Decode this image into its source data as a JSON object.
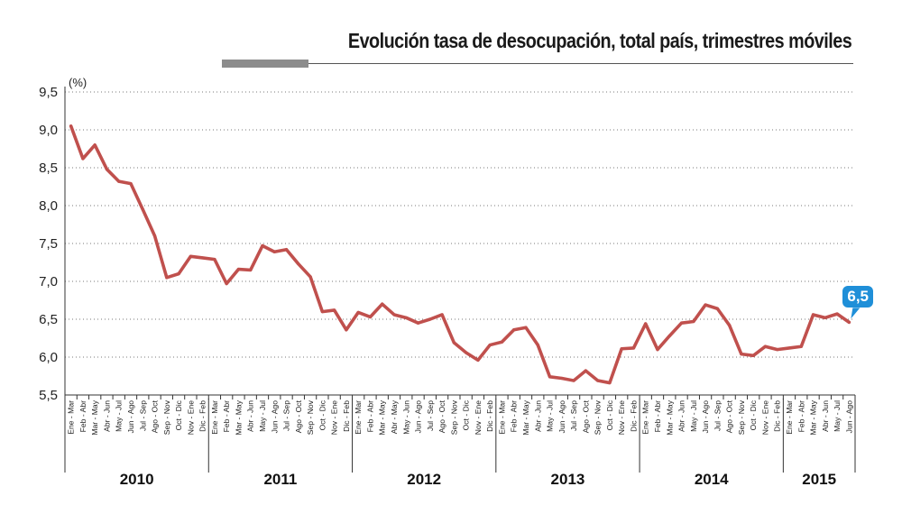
{
  "chart_data": {
    "type": "line",
    "title": "Evolución tasa de desocupación, total país, trimestres móviles",
    "ylabel": "(%)",
    "ylim": [
      5.5,
      9.5
    ],
    "yticks": [
      "5,5",
      "6,0",
      "6,5",
      "7,0",
      "7,5",
      "8,0",
      "8,5",
      "9,0",
      "9,5"
    ],
    "grid": true,
    "line_color": "#c0504d",
    "highlight_color": "#1f8fd8",
    "last_value_label": "6,5",
    "categories": [
      "Ene - Mar",
      "Feb - Abr",
      "Mar - May",
      "Abr - Jun",
      "May - Jul",
      "Jun - Ago",
      "Jul - Sep",
      "Ago - Oct",
      "Sep - Nov",
      "Oct - Dic",
      "Nov - Ene",
      "Dic - Feb",
      "Ene - Mar",
      "Feb - Abr",
      "Mar - May",
      "Abr - Jun",
      "May - Jul",
      "Jun - Ago",
      "Jul - Sep",
      "Ago - Oct",
      "Sep - Nov",
      "Oct - Dic",
      "Nov - Ene",
      "Dic - Feb",
      "Ene - Mar",
      "Feb - Abr",
      "Mar - May",
      "Abr - May",
      "May - Jun",
      "Jun - Ago",
      "Jul - Sep",
      "Ago - Oct",
      "Sep - Nov",
      "Oct - Dic",
      "Nov - Ene",
      "Dic - Feb",
      "Ene - Mar",
      "Feb - Abr",
      "Mar - May",
      "Abr - Jun",
      "May - Jul",
      "Jun - Ago",
      "Jul - Sep",
      "Ago - Oct",
      "Sep - Nov",
      "Oct - Dic",
      "Nov - Ene",
      "Dic - Feb",
      "Ene - Mar",
      "Feb - Abr",
      "Mar - May",
      "Abr - Jun",
      "May - Jul",
      "Jun - Ago",
      "Jul - Sep",
      "Ago - Oct",
      "Sep - Nov",
      "Oct - Dic",
      "Nov - Ene",
      "Dic - Feb",
      "Ene - Mar",
      "Feb - Abr",
      "Mar - May",
      "Abr - Jun",
      "May - Jul",
      "Jun - Ago"
    ],
    "series": [
      {
        "values": [
          9.05,
          8.62,
          8.8,
          8.48,
          8.32,
          8.29,
          7.95,
          7.6,
          7.05,
          7.1,
          7.33,
          7.31,
          7.29,
          6.97,
          7.16,
          7.15,
          7.47,
          7.39,
          7.42,
          7.23,
          7.06,
          6.6,
          6.62,
          6.36,
          6.59,
          6.53,
          6.7,
          6.56,
          6.52,
          6.45,
          6.5,
          6.56,
          6.19,
          6.06,
          5.96,
          6.16,
          6.2,
          6.36,
          6.39,
          6.16,
          5.74,
          5.72,
          5.69,
          5.82,
          5.69,
          5.66,
          6.11,
          6.12,
          6.44,
          6.1,
          6.28,
          6.45,
          6.47,
          6.69,
          6.64,
          6.42,
          6.04,
          6.02,
          6.14,
          6.1,
          6.12,
          6.14,
          6.56,
          6.52,
          6.57,
          6.46
        ]
      }
    ],
    "years": [
      {
        "label": "2010",
        "start": 0,
        "end": 11
      },
      {
        "label": "2011",
        "start": 12,
        "end": 23
      },
      {
        "label": "2012",
        "start": 24,
        "end": 35
      },
      {
        "label": "2013",
        "start": 36,
        "end": 47
      },
      {
        "label": "2014",
        "start": 48,
        "end": 59
      },
      {
        "label": "2015",
        "start": 60,
        "end": 65
      }
    ]
  }
}
